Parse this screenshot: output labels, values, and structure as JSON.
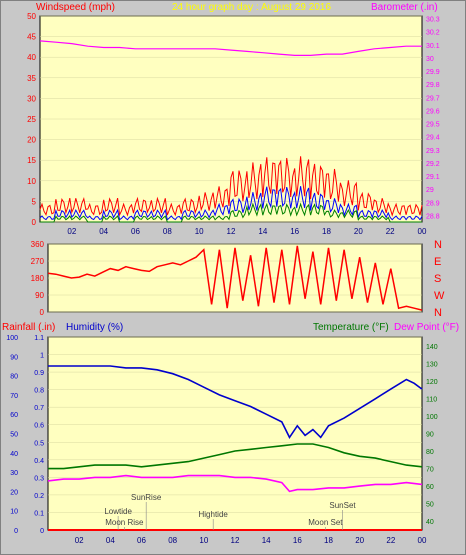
{
  "header": {
    "left_title": "Windspeed (mph)",
    "center_title": "24 hour graph day : August 29 2016",
    "right_title": "Barometer (.in)"
  },
  "colors": {
    "plot_bg": "#ffffc0",
    "frame_bg": "#c8c8c8",
    "wind": "#ff0000",
    "gust_avg": "#0000ff",
    "wind_low": "#008000",
    "barometer": "#ff00ff",
    "humidity": "#0000cc",
    "temperature": "#007700",
    "dewpoint": "#ff00ff",
    "rain": "#ff0000",
    "tide_text": "#444444"
  },
  "x_ticks": [
    "02",
    "04",
    "06",
    "08",
    "10",
    "12",
    "14",
    "16",
    "18",
    "20",
    "22",
    "00"
  ],
  "chart_data": [
    {
      "id": "wind-baro",
      "type": "line",
      "x_range_hours": [
        0,
        24
      ],
      "left_axis": {
        "label": "Windspeed (mph)",
        "ticks": [
          "0",
          "5",
          "10",
          "15",
          "20",
          "25",
          "30",
          "35",
          "40",
          "45",
          "50"
        ],
        "ylim": [
          0,
          50
        ]
      },
      "right_axis": {
        "label": "Barometer (.in)",
        "ticks": [
          "28.8",
          "28.9",
          "29",
          "29.1",
          "29.2",
          "29.3",
          "29.4",
          "29.5",
          "29.6",
          "29.7",
          "29.8",
          "29.9",
          "30",
          "30.1",
          "30.2",
          "30.3"
        ],
        "ylim": [
          28.75,
          30.32
        ]
      },
      "series": [
        {
          "name": "Barometer",
          "axis": "right",
          "color": "#ff00ff",
          "x": [
            0,
            1,
            2,
            3,
            4,
            5,
            6,
            7,
            8,
            9,
            10,
            11,
            12,
            13,
            14,
            15,
            16,
            17,
            18,
            19,
            20,
            21,
            22,
            23,
            24
          ],
          "y": [
            30.13,
            30.12,
            30.11,
            30.09,
            30.08,
            30.08,
            30.07,
            30.07,
            30.07,
            30.07,
            30.07,
            30.07,
            30.06,
            30.05,
            30.04,
            30.03,
            30.02,
            30.02,
            30.03,
            30.03,
            30.05,
            30.07,
            30.08,
            30.09,
            30.09
          ]
        },
        {
          "name": "Wind gust",
          "axis": "left",
          "color": "#ff0000",
          "x": [
            0,
            1,
            2,
            3,
            4,
            5,
            6,
            7,
            8,
            9,
            10,
            11,
            12,
            13,
            14,
            15,
            16,
            17,
            18,
            19,
            20,
            21,
            22,
            23,
            24
          ],
          "y": [
            3,
            4,
            4,
            3,
            4,
            3,
            4,
            4,
            3,
            4,
            5,
            6,
            9,
            10,
            11,
            11,
            11,
            10,
            9,
            7,
            5,
            4,
            3,
            3,
            3
          ]
        },
        {
          "name": "Wind average",
          "axis": "left",
          "color": "#0000ff",
          "x": [
            0,
            1,
            2,
            3,
            4,
            5,
            6,
            7,
            8,
            9,
            10,
            11,
            12,
            13,
            14,
            15,
            16,
            17,
            18,
            19,
            20,
            21,
            22,
            23,
            24
          ],
          "y": [
            1,
            2,
            2,
            1,
            2,
            1,
            2,
            2,
            1,
            2,
            2,
            3,
            4,
            5,
            6,
            6,
            6,
            5,
            4,
            3,
            2,
            2,
            1,
            1,
            1
          ]
        },
        {
          "name": "Wind low",
          "axis": "left",
          "color": "#008000",
          "x": [
            0,
            1,
            2,
            3,
            4,
            5,
            6,
            7,
            8,
            9,
            10,
            11,
            12,
            13,
            14,
            15,
            16,
            17,
            18,
            19,
            20,
            21,
            22,
            23,
            24
          ],
          "y": [
            0,
            1,
            1,
            0,
            1,
            0,
            1,
            1,
            0,
            1,
            1,
            1,
            2,
            3,
            3,
            3,
            3,
            3,
            2,
            2,
            1,
            1,
            0,
            0,
            0
          ]
        }
      ]
    },
    {
      "id": "wind-direction",
      "type": "line",
      "x_range_hours": [
        0,
        24
      ],
      "left_axis": {
        "ticks": [
          "0",
          "90",
          "180",
          "270",
          "360"
        ],
        "ylim": [
          0,
          360
        ]
      },
      "right_axis": {
        "ticks": [
          "N",
          "W",
          "S",
          "E",
          "N"
        ]
      },
      "series": [
        {
          "name": "Wind direction",
          "color": "#ff0000",
          "x": [
            0,
            0.5,
            1,
            1.5,
            2,
            2.5,
            3,
            3.5,
            4,
            4.5,
            5,
            5.5,
            6,
            6.5,
            7,
            7.5,
            8,
            8.5,
            9,
            9.5,
            10,
            10.5,
            11,
            11.5,
            12,
            12.5,
            13,
            13.5,
            14,
            14.5,
            15,
            15.5,
            16,
            16.5,
            17,
            17.5,
            18,
            18.5,
            19,
            19.5,
            20,
            20.5,
            21,
            21.5,
            22,
            22.5,
            23,
            23.5,
            24
          ],
          "y": [
            205,
            200,
            190,
            180,
            185,
            200,
            190,
            210,
            230,
            220,
            240,
            230,
            220,
            215,
            240,
            250,
            260,
            250,
            270,
            290,
            330,
            40,
            330,
            20,
            340,
            60,
            300,
            30,
            340,
            50,
            330,
            40,
            350,
            70,
            320,
            40,
            340,
            60,
            330,
            70,
            290,
            50,
            260,
            40,
            230,
            20,
            30,
            20,
            10
          ]
        }
      ]
    },
    {
      "id": "humidity-temp",
      "type": "line",
      "x_range_hours": [
        0,
        24
      ],
      "left_axis_1": {
        "label": "Rainfall (.in)",
        "ticks": [
          "0",
          "10",
          "20",
          "30",
          "40",
          "50",
          "60",
          "70",
          "80",
          "90",
          "100"
        ]
      },
      "left_axis_2": {
        "label": "Humidity (%)",
        "ticks": [
          "0",
          "0.1",
          "0.2",
          "0.3",
          "0.4",
          "0.5",
          "0.6",
          "0.7",
          "0.8",
          "0.9",
          "1",
          "1.1"
        ],
        "ylim": [
          0,
          100
        ]
      },
      "right_axis": {
        "label": "Temperature (°F)",
        "label2": "Dew Point (°F)",
        "ticks": [
          "40",
          "50",
          "60",
          "70",
          "80",
          "90",
          "100",
          "110",
          "120",
          "130",
          "140"
        ],
        "ylim": [
          35,
          145
        ]
      },
      "series": [
        {
          "name": "Humidity",
          "axis": "left",
          "color": "#0000cc",
          "x": [
            0,
            1,
            2,
            3,
            4,
            5,
            6,
            7,
            8,
            9,
            10,
            11,
            12,
            13,
            14,
            15,
            15.5,
            16,
            16.5,
            17,
            17.5,
            18,
            19,
            20,
            21,
            22,
            23,
            23.5,
            24
          ],
          "y": [
            85,
            85,
            85,
            85,
            85,
            84,
            84,
            83,
            81,
            78,
            74,
            70,
            67,
            64,
            60,
            56,
            48,
            54,
            49,
            52,
            48,
            54,
            58,
            63,
            68,
            73,
            78,
            76,
            73
          ]
        },
        {
          "name": "Temperature",
          "axis": "right",
          "color": "#007700",
          "x": [
            0,
            1,
            2,
            3,
            4,
            5,
            6,
            7,
            8,
            9,
            10,
            11,
            12,
            13,
            14,
            15,
            16,
            17,
            18,
            19,
            20,
            21,
            22,
            23,
            24
          ],
          "y": [
            70,
            70,
            71,
            72,
            72,
            72,
            71,
            72,
            73,
            74,
            76,
            78,
            80,
            81,
            82,
            83,
            84,
            84,
            82,
            79,
            77,
            76,
            74,
            72,
            71
          ]
        },
        {
          "name": "Dew Point",
          "axis": "right",
          "color": "#ff00ff",
          "x": [
            0,
            1,
            2,
            3,
            4,
            5,
            6,
            7,
            8,
            9,
            10,
            11,
            12,
            13,
            14,
            15,
            15.5,
            16,
            17,
            18,
            19,
            20,
            21,
            22,
            23,
            24
          ],
          "y": [
            63,
            64,
            64,
            65,
            65,
            66,
            65,
            65,
            65,
            66,
            66,
            66,
            65,
            65,
            64,
            62,
            57,
            58,
            58,
            59,
            59,
            60,
            61,
            61,
            62,
            61
          ]
        },
        {
          "name": "Rainfall",
          "axis": "left",
          "color": "#ff0000",
          "x": [
            0,
            24
          ],
          "y": [
            0,
            0
          ]
        }
      ],
      "annotations": [
        {
          "text": "SunRise",
          "hour": 6.3
        },
        {
          "text": "Lowtide",
          "hour": 4.5
        },
        {
          "text": "Moon Rise",
          "hour": 4.9
        },
        {
          "text": "Hightide",
          "hour": 10.6
        },
        {
          "text": "SunSet",
          "hour": 18.9
        },
        {
          "text": "Moon Set",
          "hour": 17.8
        }
      ]
    }
  ]
}
